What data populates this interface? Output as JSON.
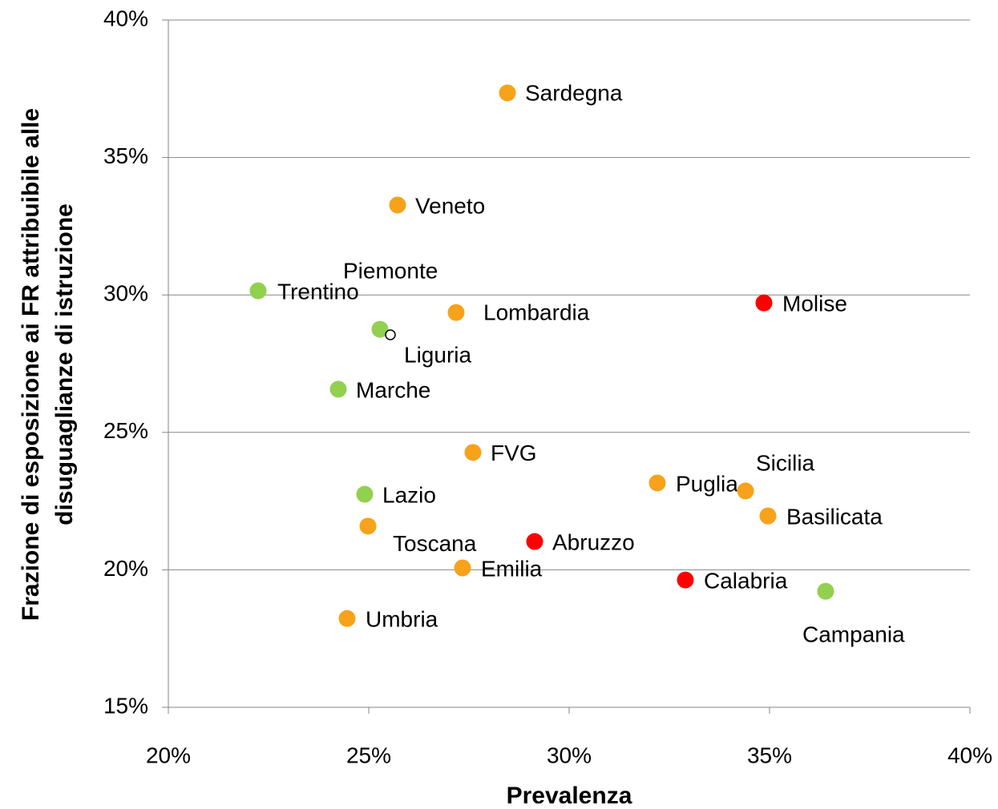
{
  "chart_data": {
    "type": "scatter",
    "x_label": "Prevalenza",
    "y_label": [
      "Frazione di esposizione ai FR attribuibile alle",
      "disuguaglianze di istruzione"
    ],
    "labels": [
      "Sardegna",
      "Veneto",
      "Trentino",
      "Piemonte",
      "Lombardia",
      "Liguria",
      "Molise",
      "Marche",
      "FVG",
      "Puglia",
      "Sicilia",
      "Basilicata",
      "Lazio",
      "Toscana",
      "Abruzzo",
      "Emilia",
      "Calabria",
      "Campania",
      "Umbria"
    ],
    "x": [
      28.46,
      25.72,
      22.24,
      25.28,
      27.18,
      25.54,
      34.86,
      24.24,
      27.6,
      32.2,
      34.4,
      34.96,
      24.9,
      24.98,
      29.14,
      27.34,
      32.9,
      36.4,
      24.46
    ],
    "y": [
      37.35,
      33.27,
      30.15,
      28.75,
      29.36,
      28.55,
      29.71,
      26.57,
      24.27,
      23.16,
      22.87,
      21.96,
      22.75,
      21.59,
      21.03,
      20.07,
      19.63,
      19.22,
      18.23
    ],
    "colors": [
      "#f7a21b",
      "#f7a21b",
      "#92d050",
      "#92d050",
      "#f7a21b",
      "#ffffff",
      "#ff0000",
      "#92d050",
      "#f7a21b",
      "#f7a21b",
      "#f7a21b",
      "#f7a21b",
      "#92d050",
      "#f7a21b",
      "#ff0000",
      "#f7a21b",
      "#ff0000",
      "#92d050",
      "#f7a21b"
    ],
    "xlim": [
      20,
      40
    ],
    "ylim": [
      15,
      40
    ],
    "xticks": [
      {
        "value": 20,
        "label": "20%"
      },
      {
        "value": 25,
        "label": "25%"
      },
      {
        "value": 30,
        "label": "30%"
      },
      {
        "value": 35,
        "label": "35%"
      },
      {
        "value": 40,
        "label": "40%"
      }
    ],
    "yticks": [
      {
        "value": 15,
        "label": "15%"
      },
      {
        "value": 20,
        "label": "20%"
      },
      {
        "value": 25,
        "label": "25%"
      },
      {
        "value": 30,
        "label": "30%"
      },
      {
        "value": 35,
        "label": "35%"
      },
      {
        "value": 40,
        "label": "40%"
      }
    ],
    "grid": true
  }
}
